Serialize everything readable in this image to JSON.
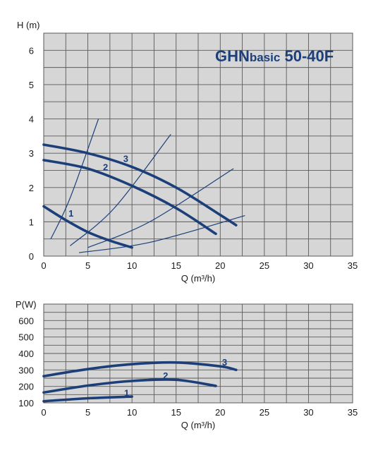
{
  "colors": {
    "plot_bg": "#d6d6d6",
    "grid": "#5a5a5a",
    "curve": "#1c3f7a",
    "text": "#1a1a1a"
  },
  "chart_data": [
    {
      "type": "line",
      "title_main": "GHN",
      "title_small": "basic",
      "title_rest": " 50-40F",
      "ylabel": "H (m)",
      "xlabel": "Q (m³/h)",
      "xlim": [
        0,
        35
      ],
      "ylim": [
        0,
        6.5
      ],
      "x_ticks": [
        "0",
        "5",
        "10",
        "15",
        "20",
        "25",
        "30",
        "35"
      ],
      "y_ticks": [
        "0",
        "1",
        "2",
        "3",
        "4",
        "5",
        "6"
      ],
      "grid": true,
      "series": [
        {
          "name": "1",
          "x": [
            0,
            2.5,
            5,
            7.5,
            10
          ],
          "y": [
            1.45,
            1.05,
            0.7,
            0.45,
            0.25
          ]
        },
        {
          "name": "2",
          "x": [
            0,
            5,
            10,
            15,
            19.5
          ],
          "y": [
            2.8,
            2.55,
            2.05,
            1.4,
            0.65
          ]
        },
        {
          "name": "3",
          "x": [
            0,
            5,
            10,
            15,
            20,
            21.8
          ],
          "y": [
            3.25,
            3.0,
            2.6,
            2.0,
            1.2,
            0.9
          ]
        }
      ],
      "system_curves": [
        {
          "x": [
            0.8,
            3,
            6.2
          ],
          "y": [
            0.5,
            1.7,
            4.0
          ]
        },
        {
          "x": [
            3,
            8,
            14.4
          ],
          "y": [
            0.3,
            1.4,
            3.55
          ]
        },
        {
          "x": [
            5,
            12,
            21.5
          ],
          "y": [
            0.25,
            1.0,
            2.55
          ]
        },
        {
          "x": [
            4,
            12,
            22.8
          ],
          "y": [
            0.1,
            0.4,
            1.18
          ]
        }
      ]
    },
    {
      "type": "line",
      "ylabel": "P(W)",
      "xlabel": "Q (m³/h)",
      "xlim": [
        0,
        35
      ],
      "ylim": [
        100,
        700
      ],
      "x_ticks": [
        "0",
        "5",
        "10",
        "15",
        "20",
        "25",
        "30",
        "35"
      ],
      "y_ticks": [
        "100",
        "200",
        "300",
        "400",
        "500",
        "600"
      ],
      "grid": true,
      "series": [
        {
          "name": "1",
          "x": [
            0,
            5,
            10
          ],
          "y": [
            110,
            128,
            138
          ]
        },
        {
          "name": "2",
          "x": [
            0,
            5,
            10,
            15,
            19.5
          ],
          "y": [
            163,
            205,
            233,
            240,
            203
          ]
        },
        {
          "name": "3",
          "x": [
            0,
            5,
            10,
            15,
            20,
            21.8
          ],
          "y": [
            262,
            305,
            335,
            345,
            322,
            300
          ]
        }
      ]
    }
  ]
}
